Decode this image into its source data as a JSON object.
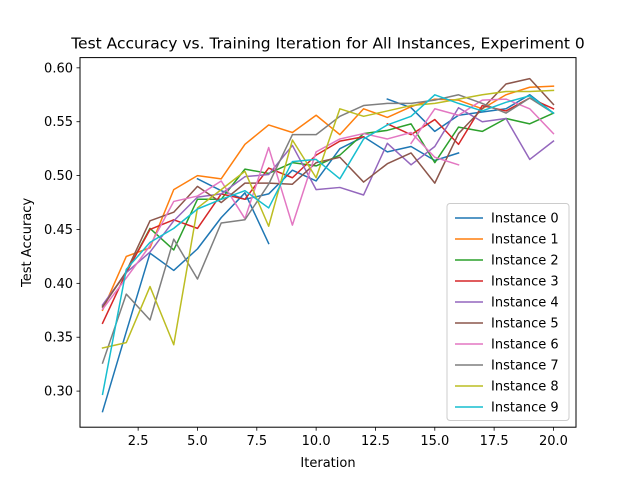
{
  "chart_data": {
    "type": "line",
    "title": "Test Accuracy vs. Training Iteration for All Instances, Experiment 0",
    "xlabel": "Iteration",
    "ylabel": "Test Accuracy",
    "xlim": [
      0.05,
      20.95
    ],
    "ylim": [
      0.2665,
      0.6095
    ],
    "xticks": [
      2.5,
      5.0,
      7.5,
      10.0,
      12.5,
      15.0,
      17.5,
      20.0
    ],
    "xtick_labels": [
      "2.5",
      "5.0",
      "7.5",
      "10.0",
      "12.5",
      "15.0",
      "17.5",
      "20.0"
    ],
    "yticks": [
      0.3,
      0.35,
      0.4,
      0.45,
      0.5,
      0.55,
      0.6
    ],
    "ytick_labels": [
      "0.30",
      "0.35",
      "0.40",
      "0.45",
      "0.50",
      "0.55",
      "0.60"
    ],
    "grid": false,
    "legend_position": "lower-right",
    "series": [
      {
        "name": "Instance 0",
        "color": "#1f77b4",
        "segments": [
          {
            "x": [
              1,
              2,
              3,
              4,
              5,
              6,
              7,
              8
            ],
            "y": [
              0.281,
              0.355,
              0.428,
              0.412,
              0.432,
              0.461,
              0.484,
              0.437
            ]
          },
          {
            "x": [
              5,
              6,
              7,
              8,
              9,
              10,
              11,
              12,
              13,
              14,
              15,
              16
            ],
            "y": [
              0.497,
              0.486,
              0.478,
              0.483,
              0.505,
              0.495,
              0.525,
              0.536,
              0.522,
              0.527,
              0.514,
              0.521
            ]
          },
          {
            "x": [
              13,
              14,
              15,
              16,
              17,
              18,
              19,
              20
            ],
            "y": [
              0.571,
              0.563,
              0.541,
              0.556,
              0.559,
              0.562,
              0.575,
              0.558
            ]
          }
        ]
      },
      {
        "name": "Instance 1",
        "color": "#ff7f0e",
        "segments": [
          {
            "x": [
              1,
              2,
              3,
              4,
              5,
              6,
              7,
              8,
              9,
              10,
              11,
              12,
              13,
              14,
              15,
              16,
              17,
              18,
              19,
              20
            ],
            "y": [
              0.375,
              0.425,
              0.433,
              0.487,
              0.5,
              0.497,
              0.529,
              0.547,
              0.54,
              0.556,
              0.538,
              0.562,
              0.554,
              0.564,
              0.571,
              0.57,
              0.562,
              0.575,
              0.582,
              0.583
            ]
          }
        ]
      },
      {
        "name": "Instance 2",
        "color": "#2ca02c",
        "segments": [
          {
            "x": [
              1,
              2,
              3,
              4,
              5,
              6,
              7,
              8,
              9,
              10,
              11,
              12,
              13,
              14,
              15,
              16,
              17,
              18,
              19,
              20
            ],
            "y": [
              0.379,
              0.41,
              0.451,
              0.431,
              0.478,
              0.478,
              0.506,
              0.502,
              0.512,
              0.509,
              0.519,
              0.539,
              0.542,
              0.548,
              0.512,
              0.545,
              0.541,
              0.553,
              0.548,
              0.558
            ]
          }
        ]
      },
      {
        "name": "Instance 3",
        "color": "#d62728",
        "segments": [
          {
            "x": [
              1,
              2,
              3,
              4,
              5,
              6,
              7,
              8,
              9,
              10,
              11,
              12
            ],
            "y": [
              0.363,
              0.41,
              0.45,
              0.459,
              0.451,
              0.483,
              0.478,
              0.507,
              0.498,
              0.519,
              0.532,
              0.536
            ]
          },
          {
            "x": [
              13,
              14,
              15,
              16,
              17,
              18,
              19,
              20
            ],
            "y": [
              0.548,
              0.538,
              0.552,
              0.529,
              0.565,
              0.56,
              0.572,
              0.562
            ]
          }
        ]
      },
      {
        "name": "Instance 4",
        "color": "#9467bd",
        "segments": [
          {
            "x": [
              1,
              2,
              3,
              4,
              5,
              6,
              7,
              8,
              9,
              10,
              11,
              12,
              13,
              14,
              15,
              16,
              17,
              18,
              19,
              20
            ],
            "y": [
              0.38,
              0.41,
              0.429,
              0.458,
              0.48,
              0.483,
              0.499,
              0.501,
              0.528,
              0.487,
              0.489,
              0.482,
              0.53,
              0.51,
              0.527,
              0.563,
              0.55,
              0.553,
              0.515,
              0.532
            ]
          }
        ]
      },
      {
        "name": "Instance 5",
        "color": "#8c564b",
        "segments": [
          {
            "x": [
              1,
              2,
              3,
              4,
              5,
              6,
              7,
              8,
              9,
              10,
              11,
              12,
              13,
              14,
              15,
              16,
              17,
              18,
              19,
              20
            ],
            "y": [
              0.378,
              0.411,
              0.458,
              0.466,
              0.49,
              0.475,
              0.493,
              0.493,
              0.492,
              0.512,
              0.517,
              0.494,
              0.511,
              0.521,
              0.493,
              0.539,
              0.562,
              0.585,
              0.59,
              0.566
            ]
          }
        ]
      },
      {
        "name": "Instance 6",
        "color": "#e377c2",
        "segments": [
          {
            "x": [
              1,
              2,
              3,
              4,
              5,
              6,
              7,
              8,
              9,
              10,
              11,
              12,
              13,
              14,
              15,
              16
            ],
            "y": [
              0.376,
              0.405,
              0.435,
              0.476,
              0.481,
              0.495,
              0.46,
              0.526,
              0.454,
              0.522,
              0.534,
              0.539,
              0.534,
              0.54,
              0.517,
              0.51
            ]
          },
          {
            "x": [
              14,
              15,
              16,
              17,
              18,
              19,
              20
            ],
            "y": [
              0.53,
              0.562,
              0.556,
              0.57,
              0.571,
              0.562,
              0.539
            ]
          }
        ]
      },
      {
        "name": "Instance 7",
        "color": "#7f7f7f",
        "segments": [
          {
            "x": [
              1,
              2,
              3,
              4,
              5,
              6,
              7,
              8,
              9,
              10,
              11,
              12,
              13,
              14,
              15,
              16,
              17,
              18,
              19,
              20
            ],
            "y": [
              0.326,
              0.39,
              0.366,
              0.441,
              0.404,
              0.456,
              0.459,
              0.492,
              0.538,
              0.538,
              0.555,
              0.565,
              0.567,
              0.567,
              0.57,
              0.575,
              0.567,
              0.558,
              0.572,
              0.558
            ]
          }
        ]
      },
      {
        "name": "Instance 8",
        "color": "#bcbd22",
        "segments": [
          {
            "x": [
              1,
              2,
              3,
              4,
              5,
              6,
              7,
              8,
              9,
              10,
              11,
              12,
              13,
              14,
              15,
              16,
              17,
              18,
              19,
              20
            ],
            "y": [
              0.34,
              0.345,
              0.397,
              0.343,
              0.47,
              0.487,
              0.504,
              0.453,
              0.533,
              0.498,
              0.562,
              0.555,
              0.56,
              0.565,
              0.567,
              0.571,
              0.575,
              0.578,
              0.578,
              0.579
            ]
          }
        ]
      },
      {
        "name": "Instance 9",
        "color": "#17becf",
        "segments": [
          {
            "x": [
              1,
              2,
              3,
              4,
              5,
              6,
              7,
              8,
              9,
              10,
              11,
              12,
              13,
              14,
              15,
              16,
              17,
              18,
              19,
              20
            ],
            "y": [
              0.297,
              0.413,
              0.438,
              0.451,
              0.469,
              0.478,
              0.486,
              0.47,
              0.513,
              0.515,
              0.497,
              0.534,
              0.547,
              0.555,
              0.575,
              0.567,
              0.56,
              0.568,
              0.574,
              0.558
            ]
          }
        ]
      }
    ]
  }
}
